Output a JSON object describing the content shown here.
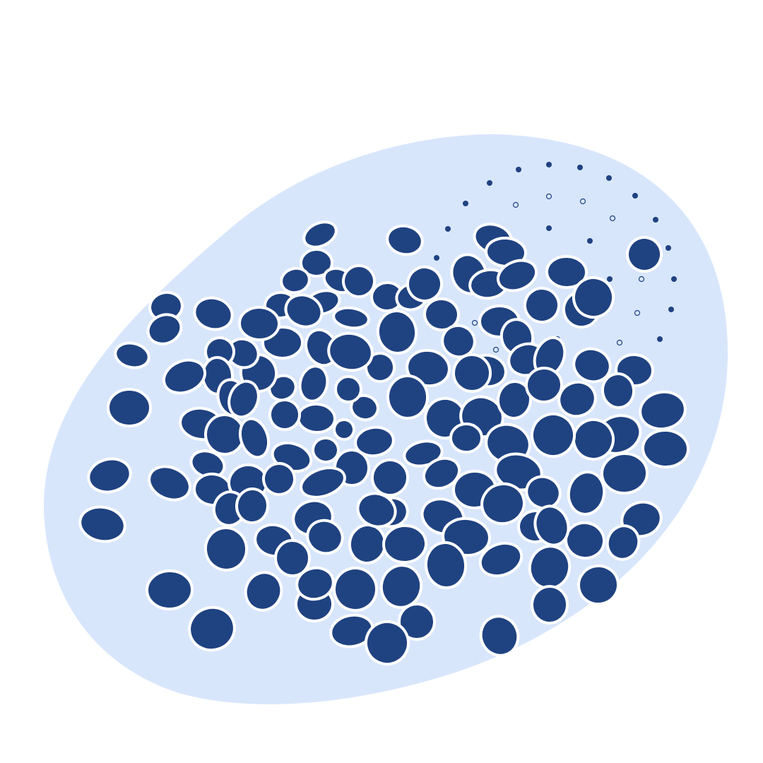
{
  "illustration": {
    "subject": "cluster-of-cells",
    "colors": {
      "background": "#ffffff",
      "blob": "#d8e6fc",
      "cell_fill": "#1f4281",
      "cell_stroke": "#ffffff",
      "dot": "#1f4281"
    }
  }
}
